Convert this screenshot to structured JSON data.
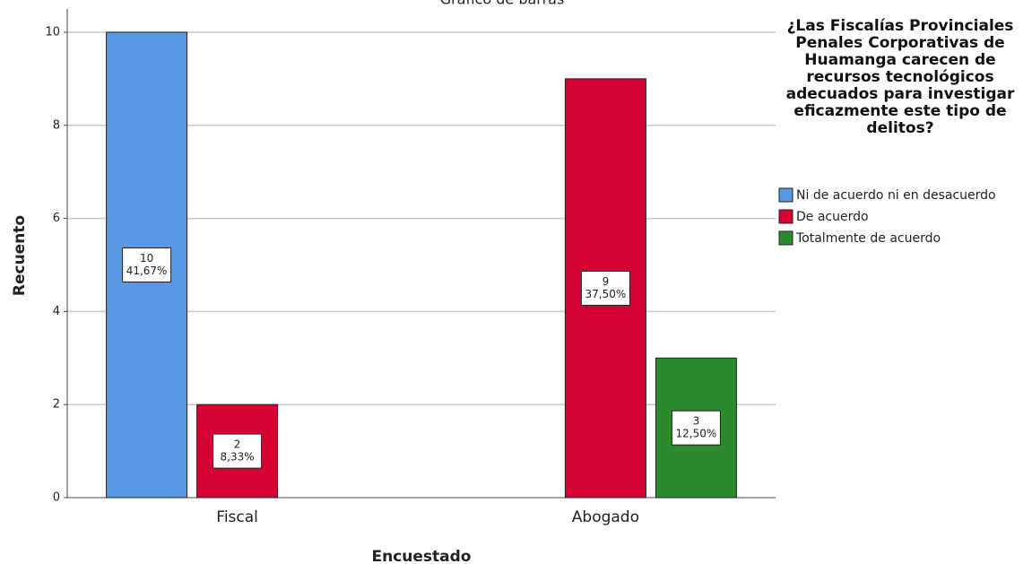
{
  "chart_data": {
    "type": "bar",
    "title": "Gráfico de barras",
    "x_label": "Encuestado",
    "y_label": "Recuento",
    "legend_title": "¿Las Fiscalías Provinciales Penales Corporativas de Huamanga carecen de recursos tecnológicos adecuados para investigar eficazmente este tipo de delitos?",
    "legend_position": "right",
    "categories": [
      "Fiscal",
      "Abogado"
    ],
    "series": [
      {
        "name": "Ni de acuerdo ni en desacuerdo",
        "color": "#5898e4",
        "values": [
          10,
          null
        ],
        "percent_labels": [
          "41,67%",
          null
        ]
      },
      {
        "name": "De acuerdo",
        "color": "#d60234",
        "values": [
          2,
          9
        ],
        "percent_labels": [
          "8,33%",
          "37,50%"
        ]
      },
      {
        "name": "Totalmente de acuerdo",
        "color": "#2b8a2e",
        "values": [
          null,
          3
        ],
        "percent_labels": [
          null,
          "12,50%"
        ]
      }
    ],
    "ylim": [
      0,
      10.5
    ],
    "yticks": [
      0,
      2,
      4,
      6,
      8,
      10
    ],
    "grid": true
  }
}
